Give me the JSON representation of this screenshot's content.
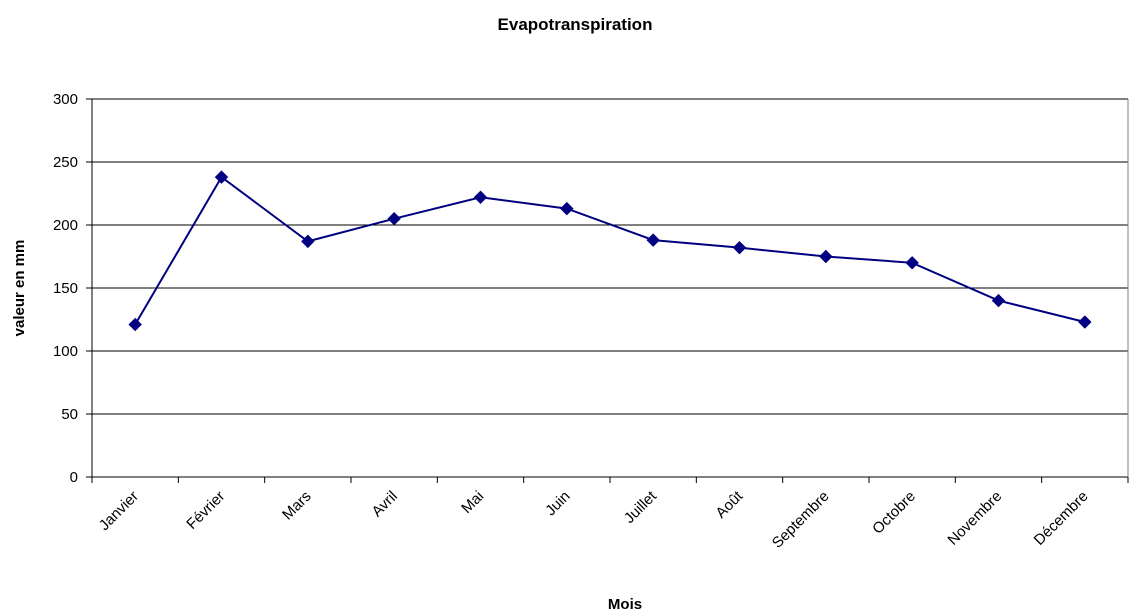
{
  "chart_data": {
    "type": "line",
    "title": "Evapotranspiration",
    "xlabel": "Mois",
    "ylabel": "valeur en mm",
    "categories": [
      "Janvier",
      "Février",
      "Mars",
      "Avril",
      "Mai",
      "Juin",
      "Juillet",
      "Août",
      "Septembre",
      "Octobre",
      "Novembre",
      "Décembre"
    ],
    "series": [
      {
        "values": [
          121,
          238,
          187,
          205,
          222,
          213,
          188,
          182,
          175,
          170,
          140,
          123
        ],
        "color": "#000080",
        "marker": "diamond"
      }
    ],
    "ylim": [
      0,
      300
    ],
    "yticks": [
      0,
      50,
      100,
      150,
      200,
      250,
      300
    ],
    "ytick_labels": [
      "0",
      "50",
      "100",
      "150",
      "200",
      "250",
      "300"
    ],
    "grid": "horizontal",
    "legend": "none"
  }
}
